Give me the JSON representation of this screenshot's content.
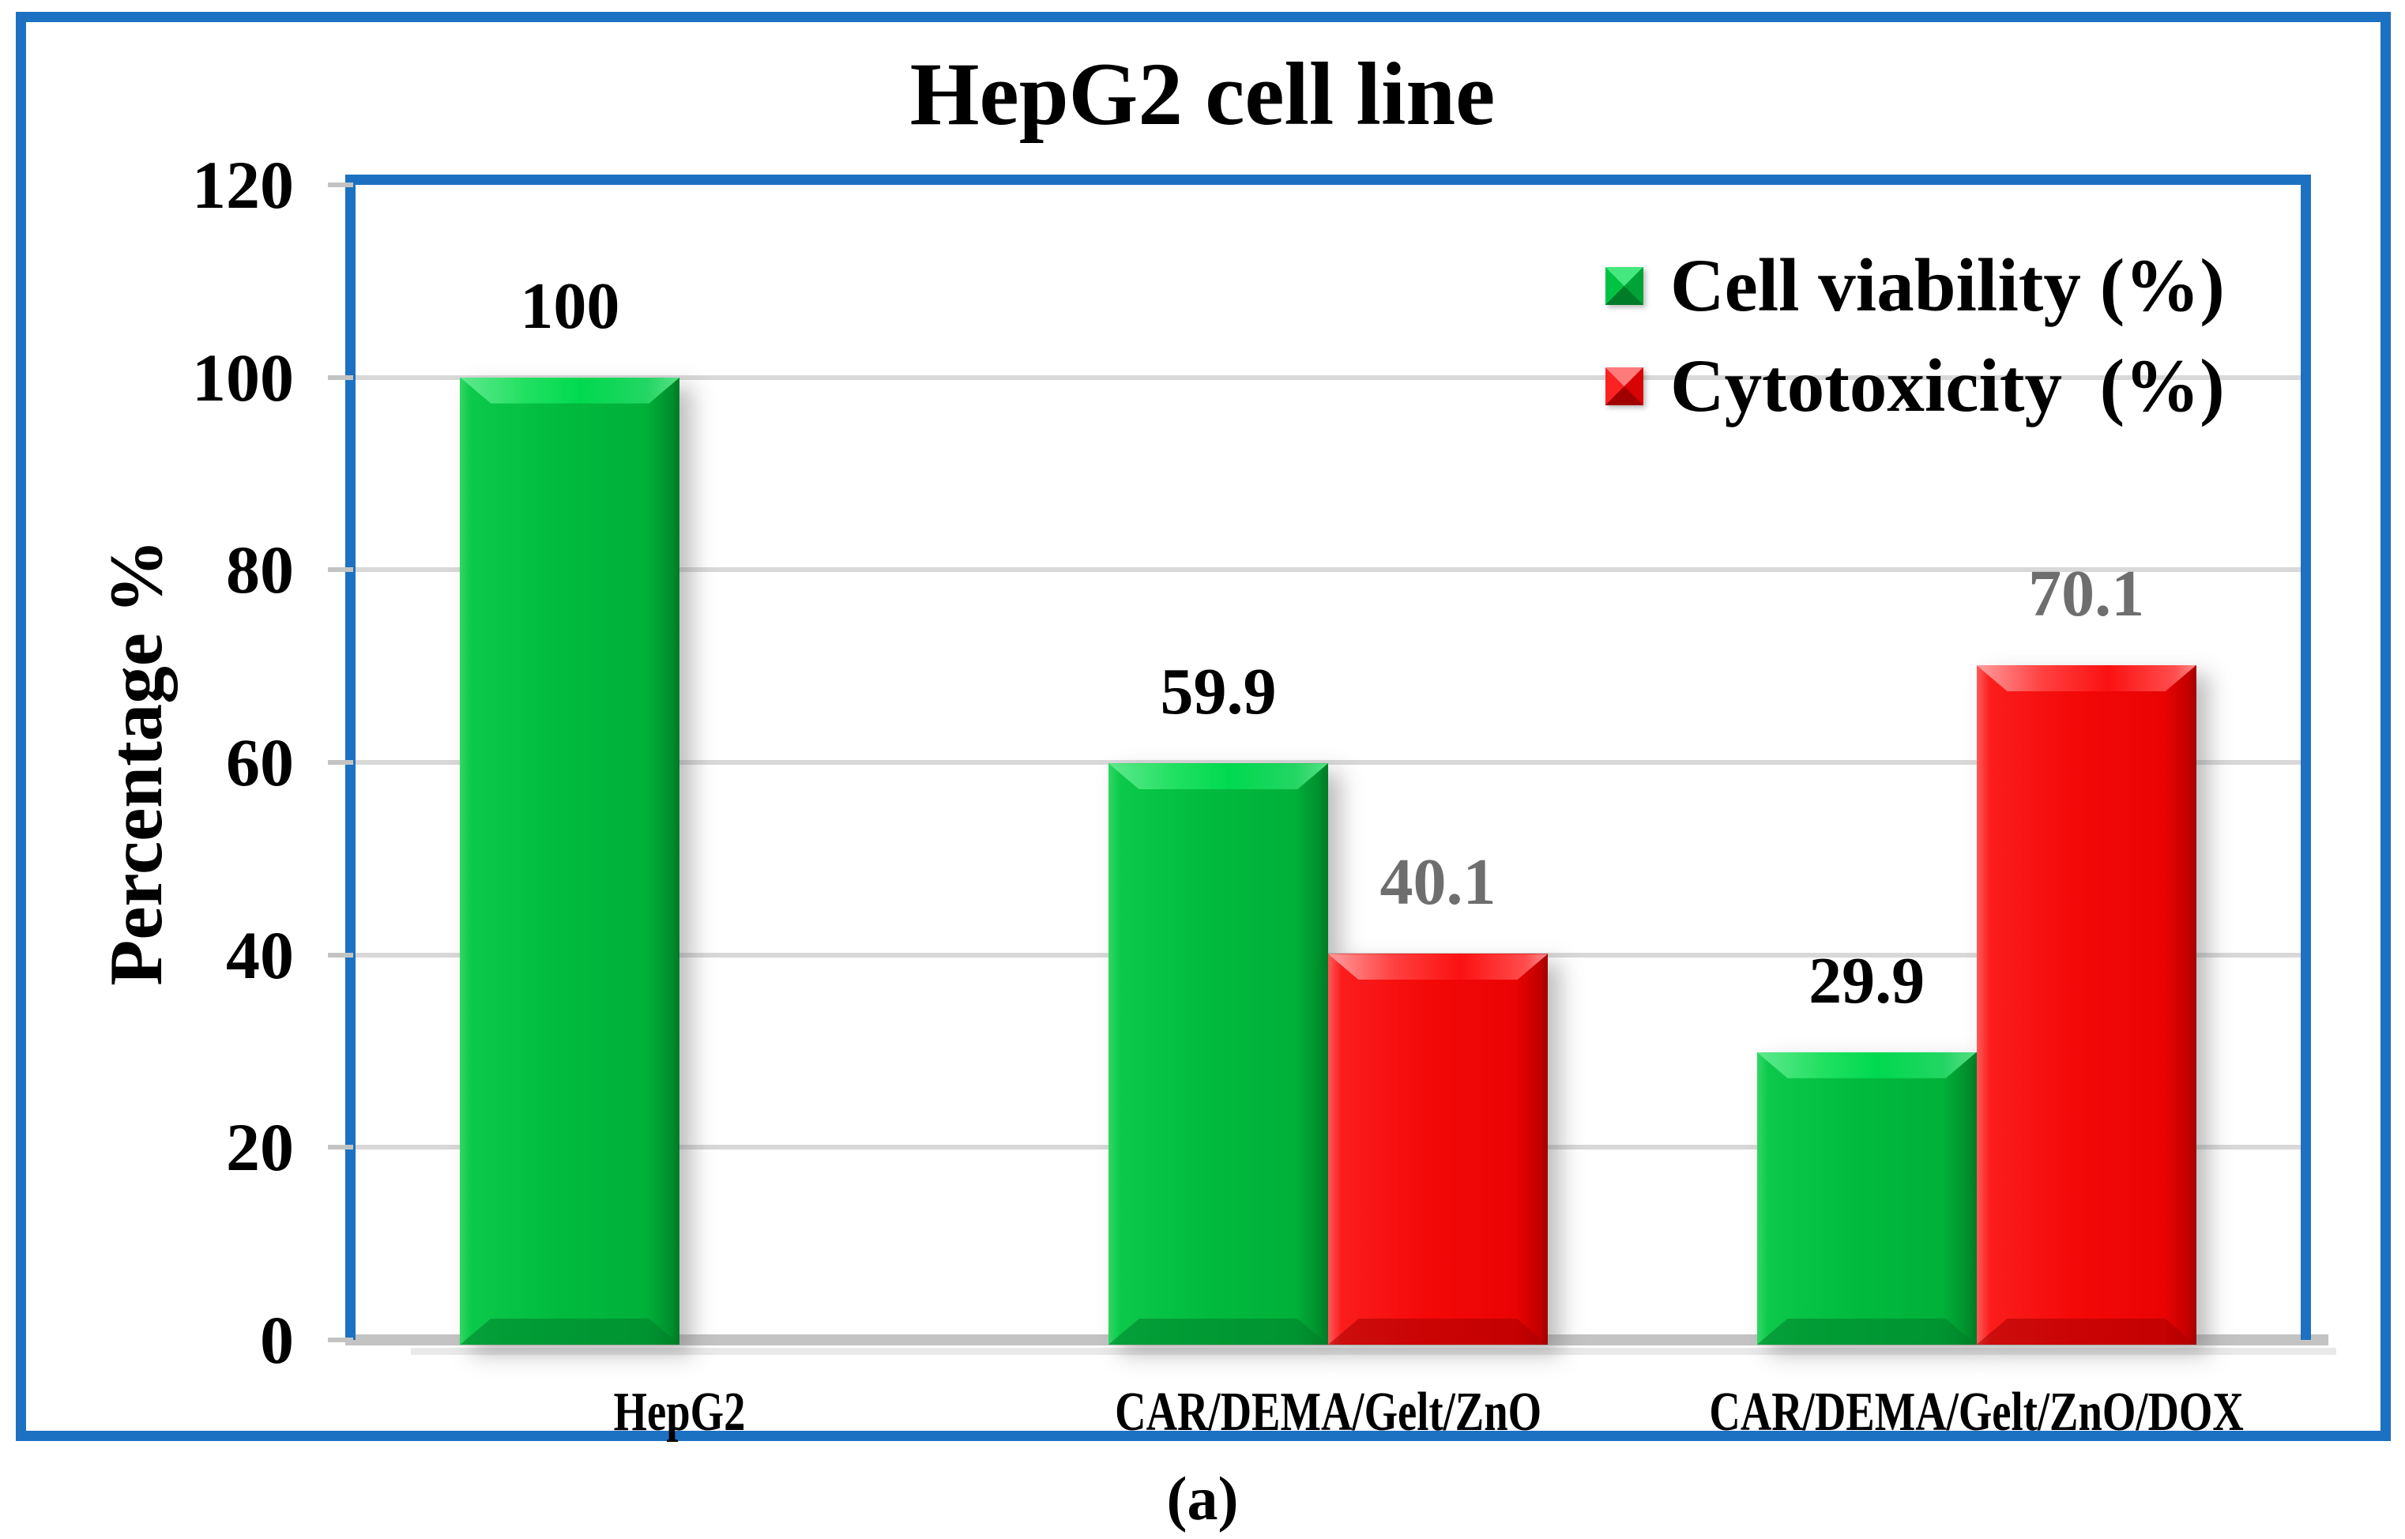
{
  "figure": {
    "caption": "(a)",
    "frame_border_color": "#1d71c2",
    "plot_border_color": "#1d71c2",
    "gridline_color": "#d8d8d8",
    "baseline_color": "#c3c3c3"
  },
  "chart_data": {
    "type": "bar",
    "title": "HepG2 cell line",
    "xlabel": "",
    "ylabel": "Percentage %",
    "categories": [
      "HepG2",
      "CAR/DEMA/Gelt/ZnO",
      "CAR/DEMA/Gelt/ZnO/DOX"
    ],
    "series": [
      {
        "name": "Cell viability (%)",
        "color": "#00b83c",
        "label_color": "#000000",
        "values": [
          100,
          59.9,
          29.9
        ],
        "labels": [
          "100",
          "59.9",
          "29.9"
        ]
      },
      {
        "name": "Cytotoxicity  (%)",
        "color": "#f40606",
        "label_color": "#6e6e6e",
        "values": [
          0,
          40.1,
          70.1
        ],
        "labels": [
          "",
          "40.1",
          "70.1"
        ]
      }
    ],
    "ylim": [
      0,
      120
    ],
    "yticks": [
      0,
      20,
      40,
      60,
      80,
      100,
      120
    ],
    "grid": true,
    "legend_position": "top-right"
  }
}
